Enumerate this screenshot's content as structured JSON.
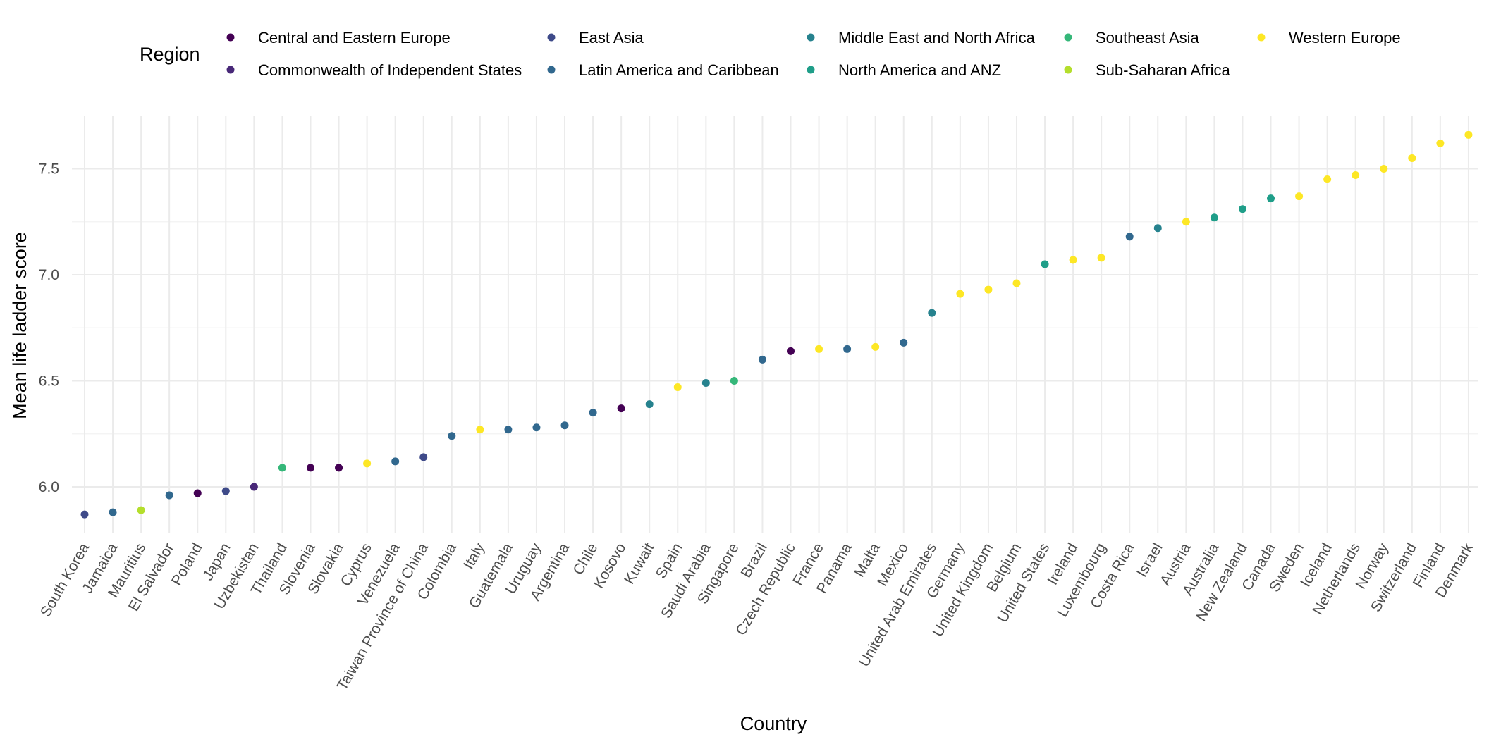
{
  "chart_data": {
    "type": "scatter",
    "xlabel": "Country",
    "ylabel": "Mean life ladder score",
    "ylim": [
      5.78,
      7.75
    ],
    "yticks": [
      "6.0",
      "6.5",
      "7.0",
      "7.5"
    ],
    "grid": true,
    "legend": {
      "title": "Region",
      "position": "top",
      "entries": [
        {
          "name": "Central and Eastern Europe",
          "color": "#440154"
        },
        {
          "name": "Commonwealth of Independent States",
          "color": "#482878"
        },
        {
          "name": "East Asia",
          "color": "#3E4A89"
        },
        {
          "name": "Latin America and Caribbean",
          "color": "#31688E"
        },
        {
          "name": "Middle East and North Africa",
          "color": "#26828E"
        },
        {
          "name": "North America and ANZ",
          "color": "#1F9E89"
        },
        {
          "name": "Southeast Asia",
          "color": "#35B779"
        },
        {
          "name": "Sub-Saharan Africa",
          "color": "#B4DE2C"
        },
        {
          "name": "Western Europe",
          "color": "#FDE725"
        }
      ]
    },
    "points": [
      {
        "country": "South Korea",
        "value": 5.87,
        "region": "East Asia"
      },
      {
        "country": "Jamaica",
        "value": 5.88,
        "region": "Latin America and Caribbean"
      },
      {
        "country": "Mauritius",
        "value": 5.89,
        "region": "Sub-Saharan Africa"
      },
      {
        "country": "El Salvador",
        "value": 5.96,
        "region": "Latin America and Caribbean"
      },
      {
        "country": "Poland",
        "value": 5.97,
        "region": "Central and Eastern Europe"
      },
      {
        "country": "Japan",
        "value": 5.98,
        "region": "East Asia"
      },
      {
        "country": "Uzbekistan",
        "value": 6.0,
        "region": "Commonwealth of Independent States"
      },
      {
        "country": "Thailand",
        "value": 6.09,
        "region": "Southeast Asia"
      },
      {
        "country": "Slovenia",
        "value": 6.09,
        "region": "Central and Eastern Europe"
      },
      {
        "country": "Slovakia",
        "value": 6.09,
        "region": "Central and Eastern Europe"
      },
      {
        "country": "Cyprus",
        "value": 6.11,
        "region": "Western Europe"
      },
      {
        "country": "Venezuela",
        "value": 6.12,
        "region": "Latin America and Caribbean"
      },
      {
        "country": "Taiwan Province of China",
        "value": 6.14,
        "region": "East Asia"
      },
      {
        "country": "Colombia",
        "value": 6.24,
        "region": "Latin America and Caribbean"
      },
      {
        "country": "Italy",
        "value": 6.27,
        "region": "Western Europe"
      },
      {
        "country": "Guatemala",
        "value": 6.27,
        "region": "Latin America and Caribbean"
      },
      {
        "country": "Uruguay",
        "value": 6.28,
        "region": "Latin America and Caribbean"
      },
      {
        "country": "Argentina",
        "value": 6.29,
        "region": "Latin America and Caribbean"
      },
      {
        "country": "Chile",
        "value": 6.35,
        "region": "Latin America and Caribbean"
      },
      {
        "country": "Kosovo",
        "value": 6.37,
        "region": "Central and Eastern Europe"
      },
      {
        "country": "Kuwait",
        "value": 6.39,
        "region": "Middle East and North Africa"
      },
      {
        "country": "Spain",
        "value": 6.47,
        "region": "Western Europe"
      },
      {
        "country": "Saudi Arabia",
        "value": 6.49,
        "region": "Middle East and North Africa"
      },
      {
        "country": "Singapore",
        "value": 6.5,
        "region": "Southeast Asia"
      },
      {
        "country": "Brazil",
        "value": 6.6,
        "region": "Latin America and Caribbean"
      },
      {
        "country": "Czech Republic",
        "value": 6.64,
        "region": "Central and Eastern Europe"
      },
      {
        "country": "France",
        "value": 6.65,
        "region": "Western Europe"
      },
      {
        "country": "Panama",
        "value": 6.65,
        "region": "Latin America and Caribbean"
      },
      {
        "country": "Malta",
        "value": 6.66,
        "region": "Western Europe"
      },
      {
        "country": "Mexico",
        "value": 6.68,
        "region": "Latin America and Caribbean"
      },
      {
        "country": "United Arab Emirates",
        "value": 6.82,
        "region": "Middle East and North Africa"
      },
      {
        "country": "Germany",
        "value": 6.91,
        "region": "Western Europe"
      },
      {
        "country": "United Kingdom",
        "value": 6.93,
        "region": "Western Europe"
      },
      {
        "country": "Belgium",
        "value": 6.96,
        "region": "Western Europe"
      },
      {
        "country": "United States",
        "value": 7.05,
        "region": "North America and ANZ"
      },
      {
        "country": "Ireland",
        "value": 7.07,
        "region": "Western Europe"
      },
      {
        "country": "Luxembourg",
        "value": 7.08,
        "region": "Western Europe"
      },
      {
        "country": "Costa Rica",
        "value": 7.18,
        "region": "Latin America and Caribbean"
      },
      {
        "country": "Israel",
        "value": 7.22,
        "region": "Middle East and North Africa"
      },
      {
        "country": "Austria",
        "value": 7.25,
        "region": "Western Europe"
      },
      {
        "country": "Australia",
        "value": 7.27,
        "region": "North America and ANZ"
      },
      {
        "country": "New Zealand",
        "value": 7.31,
        "region": "North America and ANZ"
      },
      {
        "country": "Canada",
        "value": 7.36,
        "region": "North America and ANZ"
      },
      {
        "country": "Sweden",
        "value": 7.37,
        "region": "Western Europe"
      },
      {
        "country": "Iceland",
        "value": 7.45,
        "region": "Western Europe"
      },
      {
        "country": "Netherlands",
        "value": 7.47,
        "region": "Western Europe"
      },
      {
        "country": "Norway",
        "value": 7.5,
        "region": "Western Europe"
      },
      {
        "country": "Switzerland",
        "value": 7.55,
        "region": "Western Europe"
      },
      {
        "country": "Finland",
        "value": 7.62,
        "region": "Western Europe"
      },
      {
        "country": "Denmark",
        "value": 7.66,
        "region": "Western Europe"
      }
    ]
  }
}
